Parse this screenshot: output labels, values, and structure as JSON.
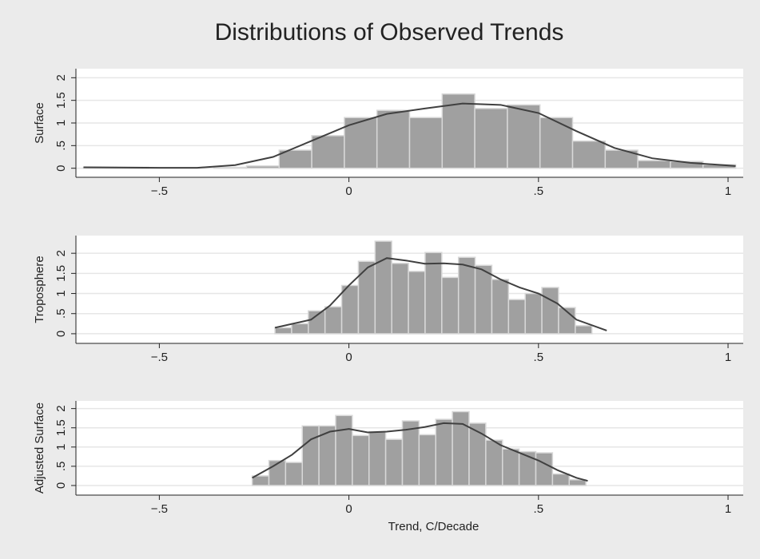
{
  "title": "Distributions of Observed Trends",
  "chart_data": [
    {
      "type": "histogram",
      "ylabel": "Surface",
      "color": "#a0a0a0",
      "line_color": "#404040",
      "grid": true,
      "bins": [
        -0.7,
        -0.614,
        -0.528,
        -0.442,
        -0.356,
        -0.27,
        -0.184,
        -0.098,
        -0.012,
        0.074,
        0.16,
        0.246,
        0.332,
        0.418,
        0.504,
        0.59,
        0.676,
        0.762,
        0.848,
        0.934,
        1.02
      ],
      "values": [
        0.02,
        0.02,
        0,
        0,
        0.02,
        0.05,
        0.4,
        0.72,
        1.12,
        1.28,
        1.12,
        1.64,
        1.32,
        1.4,
        1.12,
        0.6,
        0.4,
        0.17,
        0.15,
        0.08
      ],
      "density": {
        "x": [
          -0.7,
          -0.5,
          -0.4,
          -0.3,
          -0.2,
          -0.1,
          0,
          0.1,
          0.2,
          0.3,
          0.4,
          0.5,
          0.6,
          0.7,
          0.8,
          0.9,
          1.02
        ],
        "y": [
          0.02,
          0.01,
          0.01,
          0.07,
          0.25,
          0.6,
          0.95,
          1.2,
          1.32,
          1.43,
          1.4,
          1.22,
          0.82,
          0.45,
          0.22,
          0.12,
          0.05
        ]
      },
      "xlim": [
        -0.72,
        1.04
      ],
      "ylim": [
        -0.2,
        2.2
      ],
      "xticks": [
        {
          "value": -0.5,
          "label": "−.5"
        },
        0,
        {
          "value": 0.5,
          "label": ".5"
        },
        1
      ],
      "yticks": [
        0,
        {
          "value": 0.5,
          "label": ".5"
        },
        1,
        1.5,
        2
      ]
    },
    {
      "type": "histogram",
      "ylabel": "Troposphere",
      "color": "#a0a0a0",
      "line_color": "#404040",
      "grid": true,
      "bins": [
        -0.195,
        -0.151,
        -0.107,
        -0.063,
        -0.019,
        0.025,
        0.069,
        0.113,
        0.157,
        0.201,
        0.245,
        0.289,
        0.333,
        0.377,
        0.421,
        0.465,
        0.509,
        0.553,
        0.597,
        0.641
      ],
      "values": [
        0.15,
        0.25,
        0.57,
        0.67,
        1.2,
        1.8,
        2.3,
        1.75,
        1.55,
        2.02,
        1.4,
        1.9,
        1.7,
        1.35,
        0.85,
        1.0,
        1.15,
        0.65,
        0.2
      ],
      "density": {
        "x": [
          -0.195,
          -0.1,
          -0.05,
          0,
          0.05,
          0.1,
          0.15,
          0.2,
          0.25,
          0.3,
          0.35,
          0.4,
          0.45,
          0.5,
          0.55,
          0.6,
          0.68
        ],
        "y": [
          0.15,
          0.35,
          0.7,
          1.2,
          1.65,
          1.88,
          1.82,
          1.74,
          1.75,
          1.72,
          1.6,
          1.35,
          1.15,
          1.0,
          0.75,
          0.35,
          0.08
        ]
      },
      "xlim": [
        -0.72,
        1.04
      ],
      "ylim": [
        -0.24,
        2.44
      ],
      "xticks": [
        {
          "value": -0.5,
          "label": "−.5"
        },
        0,
        {
          "value": 0.5,
          "label": ".5"
        },
        1
      ],
      "yticks": [
        0,
        {
          "value": 0.5,
          "label": ".5"
        },
        1,
        1.5,
        2
      ]
    },
    {
      "type": "histogram",
      "ylabel": "Adjusted Surface",
      "xlabel": "Trend, C/Decade",
      "color": "#a0a0a0",
      "line_color": "#404040",
      "grid": true,
      "bins": [
        -0.255,
        -0.211,
        -0.167,
        -0.123,
        -0.079,
        -0.035,
        0.009,
        0.053,
        0.097,
        0.141,
        0.185,
        0.229,
        0.273,
        0.317,
        0.361,
        0.405,
        0.449,
        0.493,
        0.537,
        0.581,
        0.625
      ],
      "values": [
        0.25,
        0.65,
        0.6,
        1.55,
        1.55,
        1.82,
        1.3,
        1.4,
        1.2,
        1.68,
        1.32,
        1.72,
        1.92,
        1.62,
        1.18,
        0.95,
        0.88,
        0.85,
        0.3,
        0.15
      ],
      "density": {
        "x": [
          -0.255,
          -0.2,
          -0.15,
          -0.1,
          -0.05,
          0,
          0.05,
          0.1,
          0.15,
          0.2,
          0.25,
          0.3,
          0.35,
          0.4,
          0.45,
          0.5,
          0.55,
          0.6,
          0.63
        ],
        "y": [
          0.2,
          0.5,
          0.8,
          1.2,
          1.4,
          1.47,
          1.38,
          1.4,
          1.45,
          1.52,
          1.62,
          1.6,
          1.35,
          1.05,
          0.85,
          0.65,
          0.4,
          0.2,
          0.12
        ]
      },
      "xlim": [
        -0.72,
        1.04
      ],
      "ylim": [
        -0.25,
        2.2
      ],
      "xticks": [
        {
          "value": -0.5,
          "label": "−.5"
        },
        0,
        {
          "value": 0.5,
          "label": ".5"
        },
        1
      ],
      "yticks": [
        0,
        {
          "value": 0.5,
          "label": ".5"
        },
        1,
        1.5,
        2
      ]
    }
  ]
}
